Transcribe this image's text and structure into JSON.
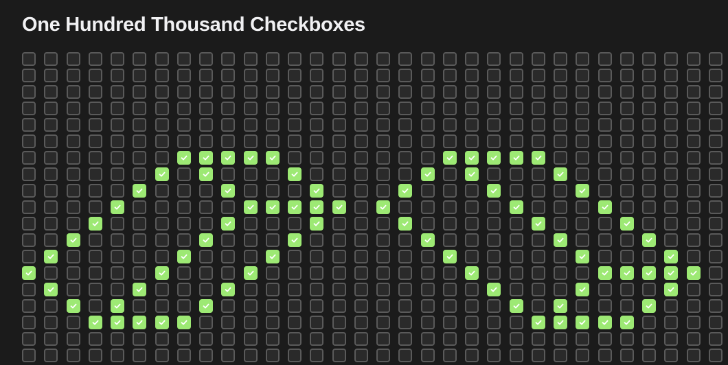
{
  "page": {
    "title": "One Hundred Thousand Checkboxes"
  },
  "colors": {
    "background": "#1b1b1b",
    "unchecked_fill": "#2a2a2a",
    "unchecked_border": "#5a5a5a",
    "checked": "#9de974",
    "check_mark": "#ffffff"
  },
  "grid": {
    "visible_rows": 19,
    "visible_columns": 32,
    "checked": {
      "6": [
        7,
        8,
        9,
        10,
        11,
        19,
        20,
        21,
        22,
        23
      ],
      "7": [
        6,
        8,
        12,
        18,
        20,
        24
      ],
      "8": [
        5,
        9,
        13,
        17,
        21,
        25
      ],
      "9": [
        4,
        10,
        11,
        12,
        13,
        14,
        16,
        22,
        26
      ],
      "10": [
        3,
        9,
        13,
        17,
        23,
        27
      ],
      "11": [
        2,
        8,
        12,
        18,
        24,
        28
      ],
      "12": [
        1,
        7,
        11,
        19,
        25,
        29
      ],
      "13": [
        0,
        6,
        10,
        20,
        26,
        27,
        28,
        29,
        30
      ],
      "14": [
        1,
        5,
        9,
        21,
        25,
        29
      ],
      "15": [
        2,
        4,
        8,
        22,
        24,
        28
      ],
      "16": [
        3,
        4,
        5,
        6,
        7,
        23,
        24,
        25,
        26,
        27
      ]
    }
  },
  "icons": {
    "check": "checkmark-icon"
  }
}
